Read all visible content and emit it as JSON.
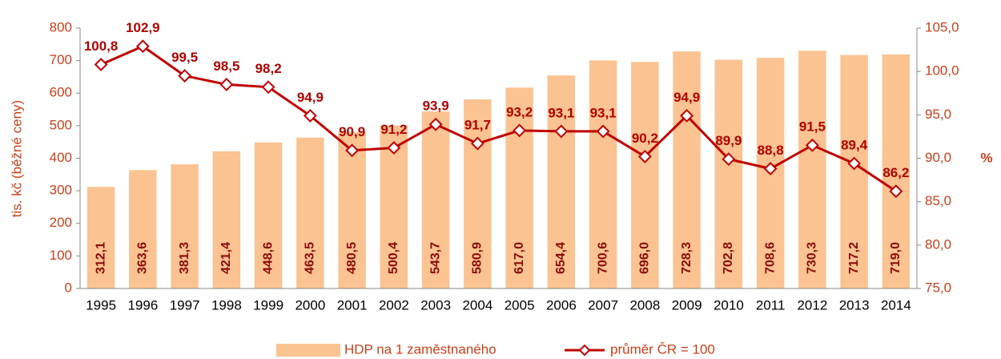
{
  "chart_data": {
    "type": "bar",
    "y_label": "tis. kč (běžné ceny)",
    "y2_label": "%",
    "categories": [
      "1995",
      "1996",
      "1997",
      "1998",
      "1999",
      "2000",
      "2001",
      "2002",
      "2003",
      "2004",
      "2005",
      "2006",
      "2007",
      "2008",
      "2009",
      "2010",
      "2011",
      "2012",
      "2013",
      "2014"
    ],
    "series": [
      {
        "name": "HDP na 1 zaměstnaného",
        "type": "bar",
        "color": "#fac391",
        "values": [
          312.1,
          363.6,
          381.3,
          421.4,
          448.6,
          463.5,
          480.5,
          500.4,
          543.7,
          580.9,
          617.0,
          654.4,
          700.6,
          696.0,
          728.3,
          702.8,
          708.6,
          730.3,
          717.2,
          719.0
        ],
        "value_labels": [
          "312,1",
          "363,6",
          "381,3",
          "421,4",
          "448,6",
          "463,5",
          "480,5",
          "500,4",
          "543,7",
          "580,9",
          "617,0",
          "654,4",
          "700,6",
          "696,0",
          "728,3",
          "702,8",
          "708,6",
          "730,3",
          "717,2",
          "719,0"
        ]
      },
      {
        "name": "průměr ČR = 100",
        "type": "line",
        "axis": "y2",
        "color": "#c00000",
        "values": [
          100.8,
          102.9,
          99.5,
          98.5,
          98.2,
          94.9,
          90.9,
          91.2,
          93.9,
          91.7,
          93.2,
          93.1,
          93.1,
          90.2,
          94.9,
          89.9,
          88.8,
          91.5,
          89.4,
          86.2
        ],
        "value_labels": [
          "100,8",
          "102,9",
          "99,5",
          "98,5",
          "98,2",
          "94,9",
          "90,9",
          "91,2",
          "93,9",
          "91,7",
          "93,2",
          "93,1",
          "93,1",
          "90,2",
          "94,9",
          "89,9",
          "88,8",
          "91,5",
          "89,4",
          "86,2"
        ]
      }
    ],
    "ylim": [
      0,
      800
    ],
    "yticks": [
      0,
      100,
      200,
      300,
      400,
      500,
      600,
      700,
      800
    ],
    "y2lim": [
      75,
      105
    ],
    "y2ticks": [
      {
        "value": 75,
        "label": "75,0"
      },
      {
        "value": 80,
        "label": "80,0"
      },
      {
        "value": 85,
        "label": "85,0"
      },
      {
        "value": 90,
        "label": "90,0"
      },
      {
        "value": 95,
        "label": "95,0"
      },
      {
        "value": 100,
        "label": "100,0"
      },
      {
        "value": 105,
        "label": "105,0"
      }
    ],
    "legend": "bottom",
    "grid": false
  }
}
